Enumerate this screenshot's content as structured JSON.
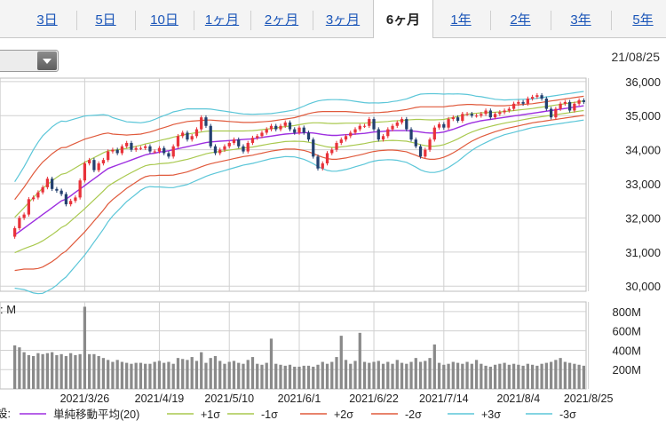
{
  "tabs": [
    {
      "label": "3日",
      "active": false
    },
    {
      "label": "5日",
      "active": false
    },
    {
      "label": "10日",
      "active": false
    },
    {
      "label": "1ヶ月",
      "active": false
    },
    {
      "label": "2ヶ月",
      "active": false
    },
    {
      "label": "3ヶ月",
      "active": false
    },
    {
      "label": "6ヶ月",
      "active": true
    },
    {
      "label": "1年",
      "active": false
    },
    {
      "label": "2年",
      "active": false
    },
    {
      "label": "3年",
      "active": false
    },
    {
      "label": "5年",
      "active": false
    }
  ],
  "date_label": "21/08/25",
  "volume_unit_label": ": M",
  "legend": {
    "prefix": "設:",
    "items": [
      {
        "label": "単純移動平均(20)",
        "color": "#9d2fe0"
      },
      {
        "label": "+1σ",
        "color": "#a9c94f"
      },
      {
        "label": "-1σ",
        "color": "#a9c94f"
      },
      {
        "label": "+2σ",
        "color": "#e05a3c"
      },
      {
        "label": "-2σ",
        "color": "#e05a3c"
      },
      {
        "label": "+3σ",
        "color": "#5bc6d8"
      },
      {
        "label": "-3σ",
        "color": "#5bc6d8"
      }
    ]
  },
  "colors": {
    "up": "#e8323a",
    "down": "#23406f",
    "volume": "#8a8a8a",
    "grid": "#d0d0d0"
  },
  "chart_data": [
    {
      "type": "candlestick",
      "yticks": [
        30000,
        31000,
        32000,
        33000,
        34000,
        35000,
        36000
      ],
      "ytick_labels": [
        "30,000",
        "31,000",
        "32,000",
        "33,000",
        "34,000",
        "35,000",
        "36,000"
      ],
      "ylim": [
        29850,
        36100
      ],
      "xtick_labels": [
        "2021/3/26",
        "2021/4/19",
        "2021/5/10",
        "2021/6/1",
        "2021/6/22",
        "2021/7/14",
        "2021/8/4",
        "2021/8/25"
      ],
      "xtick_index": [
        15,
        31,
        46,
        61,
        77,
        92,
        108,
        123
      ],
      "close": [
        31700,
        32000,
        32100,
        32550,
        32600,
        32750,
        32900,
        33150,
        32850,
        32800,
        32700,
        32400,
        32500,
        32600,
        33100,
        33600,
        33700,
        33400,
        33600,
        33700,
        33950,
        34000,
        33900,
        34100,
        34200,
        34000,
        34050,
        34050,
        34100,
        33950,
        33950,
        34050,
        33900,
        33800,
        34100,
        34400,
        34500,
        34300,
        34400,
        34600,
        34950,
        34700,
        34100,
        33900,
        34000,
        34100,
        34200,
        34300,
        34100,
        33950,
        34200,
        34350,
        34400,
        34500,
        34600,
        34700,
        34600,
        34700,
        34800,
        34600,
        34500,
        34650,
        34500,
        34300,
        33800,
        33450,
        33600,
        33900,
        34000,
        34200,
        34300,
        34400,
        34500,
        34600,
        34700,
        34700,
        34900,
        34600,
        34300,
        34400,
        34600,
        34700,
        34800,
        34900,
        34600,
        34300,
        34100,
        33800,
        34000,
        34300,
        34650,
        34750,
        34650,
        34900,
        34950,
        34850,
        35050,
        35050,
        35000,
        35000,
        35050,
        35150,
        34950,
        35050,
        35100,
        35150,
        35200,
        35350,
        35400,
        35350,
        35500,
        35550,
        35600,
        35500,
        35200,
        34950,
        35200,
        35350,
        35400,
        35150,
        35350,
        35450,
        35400
      ],
      "sma20": [
        31500,
        31600,
        31700,
        31800,
        31900,
        32000,
        32100,
        32200,
        32300,
        32400,
        32500,
        32550,
        32650,
        32750,
        32850,
        32950,
        33050,
        33150,
        33250,
        33350,
        33450,
        33500,
        33550,
        33600,
        33650,
        33700,
        33750,
        33800,
        33850,
        33880,
        33900,
        33930,
        33950,
        33970,
        34000,
        34030,
        34060,
        34090,
        34120,
        34150,
        34180,
        34210,
        34230,
        34240,
        34250,
        34260,
        34270,
        34280,
        34290,
        34300,
        34310,
        34320,
        34340,
        34360,
        34380,
        34400,
        34420,
        34440,
        34460,
        34470,
        34480,
        34490,
        34500,
        34500,
        34490,
        34470,
        34450,
        34430,
        34420,
        34420,
        34430,
        34440,
        34450,
        34460,
        34470,
        34480,
        34500,
        34520,
        34530,
        34540,
        34550,
        34560,
        34560,
        34560,
        34560,
        34550,
        34540,
        34520,
        34500,
        34490,
        34490,
        34500,
        34520,
        34560,
        34600,
        34650,
        34700,
        34750,
        34790,
        34820,
        34850,
        34870,
        34890,
        34910,
        34930,
        34950,
        34970,
        34990,
        35010,
        35030,
        35050,
        35070,
        35090,
        35110,
        35130,
        35150,
        35170,
        35190,
        35210,
        35230,
        35250,
        35270,
        35290
      ],
      "sigma": [
        520,
        560,
        600,
        650,
        700,
        740,
        770,
        780,
        790,
        790,
        780,
        760,
        740,
        720,
        700,
        680,
        650,
        620,
        590,
        560,
        520,
        480,
        450,
        420,
        390,
        370,
        350,
        330,
        320,
        320,
        330,
        340,
        350,
        360,
        370,
        370,
        370,
        370,
        360,
        350,
        340,
        330,
        320,
        310,
        300,
        290,
        280,
        270,
        260,
        250,
        245,
        240,
        235,
        230,
        225,
        220,
        220,
        220,
        220,
        225,
        230,
        245,
        260,
        280,
        300,
        320,
        335,
        345,
        350,
        350,
        345,
        340,
        330,
        320,
        310,
        300,
        290,
        285,
        280,
        280,
        280,
        285,
        290,
        300,
        310,
        330,
        350,
        370,
        380,
        385,
        385,
        380,
        370,
        360,
        345,
        330,
        310,
        290,
        270,
        250,
        235,
        220,
        205,
        190,
        180,
        170,
        165,
        160,
        155,
        150,
        145,
        140,
        140,
        140,
        140,
        140,
        140,
        140,
        140,
        140,
        140,
        140,
        140
      ],
      "series_legend": [
        "単純移動平均(20)",
        "+1σ",
        "-1σ",
        "+2σ",
        "-2σ",
        "+3σ",
        "-3σ"
      ]
    },
    {
      "type": "bar",
      "ylabel_unit": "M",
      "yticks": [
        200,
        400,
        600,
        800
      ],
      "ytick_labels": [
        "200M",
        "400M",
        "600M",
        "800M"
      ],
      "ylim": [
        0,
        900
      ],
      "values": [
        450,
        430,
        380,
        350,
        340,
        370,
        360,
        370,
        380,
        350,
        360,
        340,
        370,
        350,
        360,
        850,
        360,
        360,
        340,
        320,
        300,
        280,
        300,
        280,
        270,
        260,
        270,
        270,
        260,
        260,
        280,
        290,
        270,
        280,
        260,
        320,
        310,
        300,
        330,
        290,
        380,
        270,
        320,
        340,
        290,
        260,
        280,
        290,
        270,
        260,
        300,
        330,
        260,
        250,
        270,
        520,
        260,
        250,
        240,
        250,
        230,
        230,
        240,
        240,
        230,
        250,
        280,
        260,
        280,
        330,
        550,
        300,
        260,
        290,
        580,
        280,
        270,
        280,
        290,
        260,
        280,
        260,
        300,
        270,
        260,
        280,
        320,
        280,
        290,
        320,
        460,
        270,
        250,
        260,
        280,
        270,
        260,
        280,
        260,
        300,
        260,
        240,
        230,
        250,
        260,
        270,
        250,
        260,
        250,
        240,
        260,
        250,
        240,
        260,
        270,
        280,
        300,
        320,
        280,
        270,
        260,
        250,
        240
      ]
    }
  ]
}
